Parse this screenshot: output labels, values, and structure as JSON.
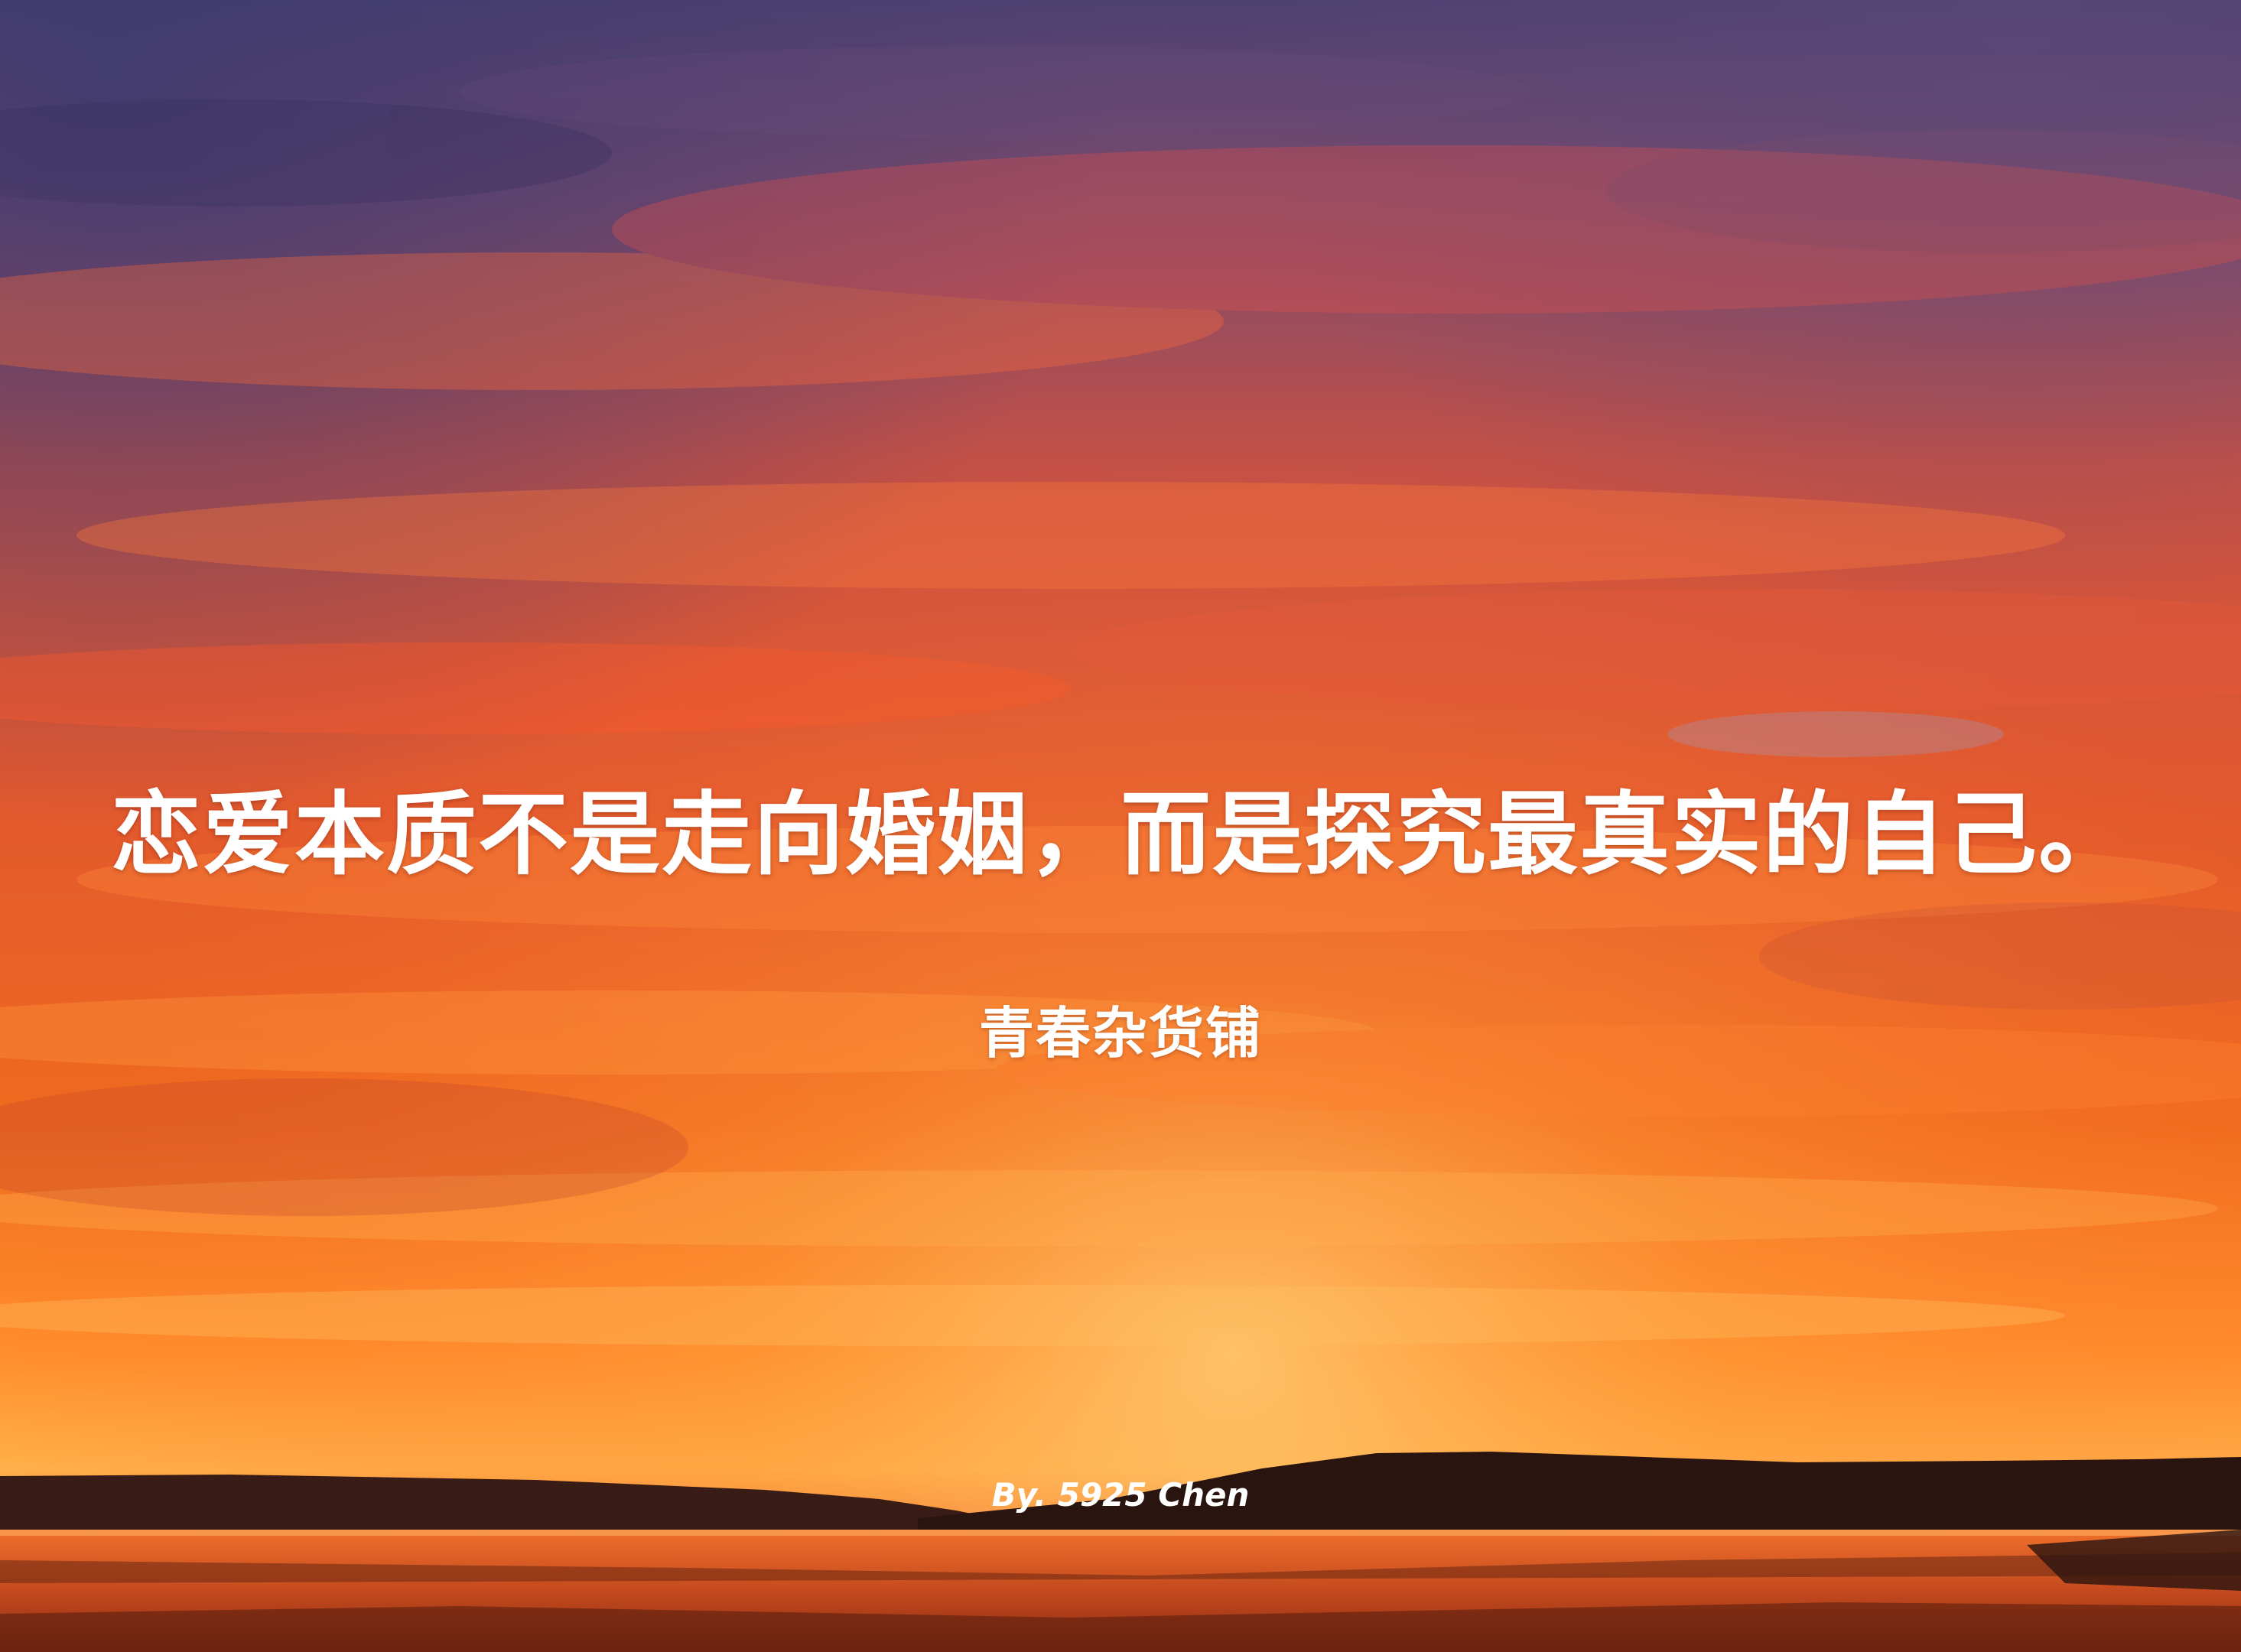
{
  "quote": "恋爱本质不是走向婚姻，而是探究最真实的自己。",
  "subtitle": "青春杂货铺",
  "byline": "By. 5925 Chen",
  "background": {
    "scene": "sunset-over-water",
    "colors": {
      "sky_top": "#5a4a78",
      "sky_mid": "#d65a3c",
      "sky_glow": "#ff8a2a",
      "horizon": "#ffb347",
      "hills": "#2a1410",
      "water": "#c8461e"
    }
  }
}
